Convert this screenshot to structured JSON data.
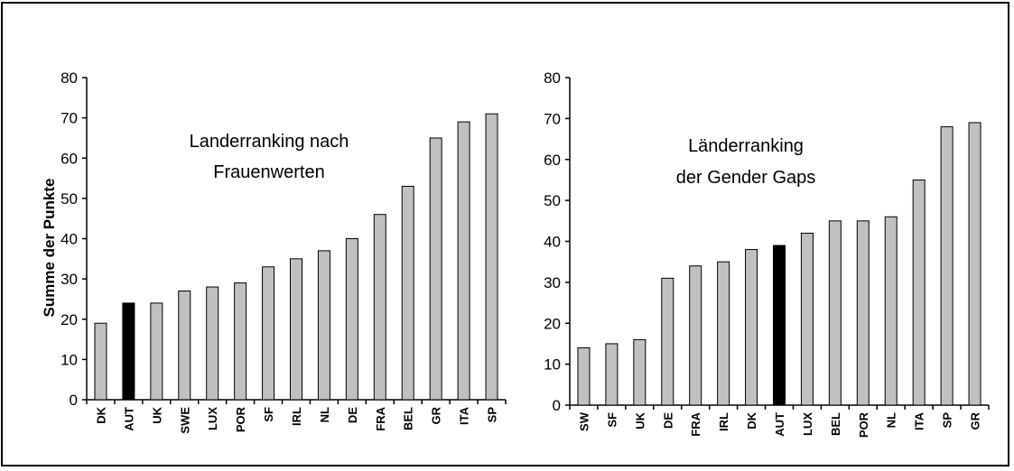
{
  "chart_data": [
    {
      "type": "bar",
      "title": "",
      "xlabel": "",
      "ylabel": "Summe der Punkte",
      "ylim": [
        0,
        80
      ],
      "yticks": [
        0,
        10,
        20,
        30,
        40,
        50,
        60,
        70,
        80
      ],
      "annotation": [
        "Landerranking nach",
        "Frauenwerten"
      ],
      "categories": [
        "DK",
        "AUT",
        "UK",
        "SWE",
        "LUX",
        "POR",
        "SF",
        "IRL",
        "NL",
        "DE",
        "FRA",
        "BEL",
        "GR",
        "ITA",
        "SP"
      ],
      "values": [
        19,
        24,
        24,
        27,
        28,
        29,
        33,
        35,
        37,
        40,
        46,
        53,
        65,
        69,
        71
      ],
      "highlight": "AUT",
      "bar_color": "#c0c0c0",
      "highlight_color": "#000000",
      "grid": false
    },
    {
      "type": "bar",
      "title": "",
      "xlabel": "",
      "ylabel": "",
      "ylim": [
        0,
        80
      ],
      "yticks": [
        0,
        10,
        20,
        30,
        40,
        50,
        60,
        70,
        80
      ],
      "annotation": [
        "Länderranking",
        "der Gender Gaps"
      ],
      "categories": [
        "SW",
        "SF",
        "UK",
        "DE",
        "FRA",
        "IRL",
        "DK",
        "AUT",
        "LUX",
        "BEL",
        "POR",
        "NL",
        "ITA",
        "SP",
        "GR"
      ],
      "values": [
        14,
        15,
        16,
        31,
        34,
        35,
        38,
        39,
        42,
        45,
        45,
        46,
        55,
        68,
        69
      ],
      "highlight": "AUT",
      "bar_color": "#c0c0c0",
      "highlight_color": "#000000",
      "grid": false
    }
  ]
}
